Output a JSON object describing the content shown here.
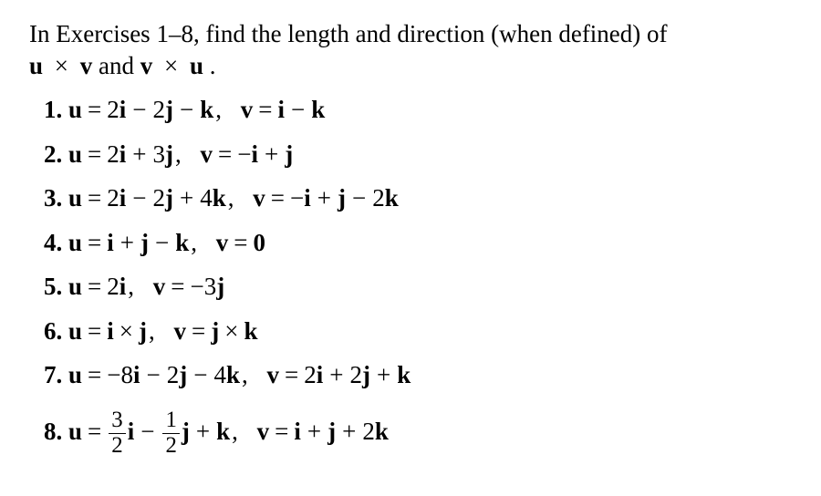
{
  "intro_line1": "In Exercises 1–8, find the length and direction (when defined) of",
  "u": "u",
  "v": "v",
  "times": "×",
  "and": " and ",
  "period": ".",
  "eq": "=",
  "comma": ",",
  "minus": "−",
  "plus": "+",
  "i": "i",
  "j": "j",
  "k": "k",
  "zero": "0",
  "p1": {
    "n": "1."
  },
  "p2": {
    "n": "2."
  },
  "p3": {
    "n": "3."
  },
  "p4": {
    "n": "4."
  },
  "p5": {
    "n": "5."
  },
  "p6": {
    "n": "6."
  },
  "p7": {
    "n": "7."
  },
  "p8": {
    "n": "8."
  },
  "c2": "2",
  "c3": "3",
  "c4": "4",
  "c8": "8",
  "f32n": "3",
  "f32d": "2",
  "f12n": "1",
  "f12d": "2"
}
